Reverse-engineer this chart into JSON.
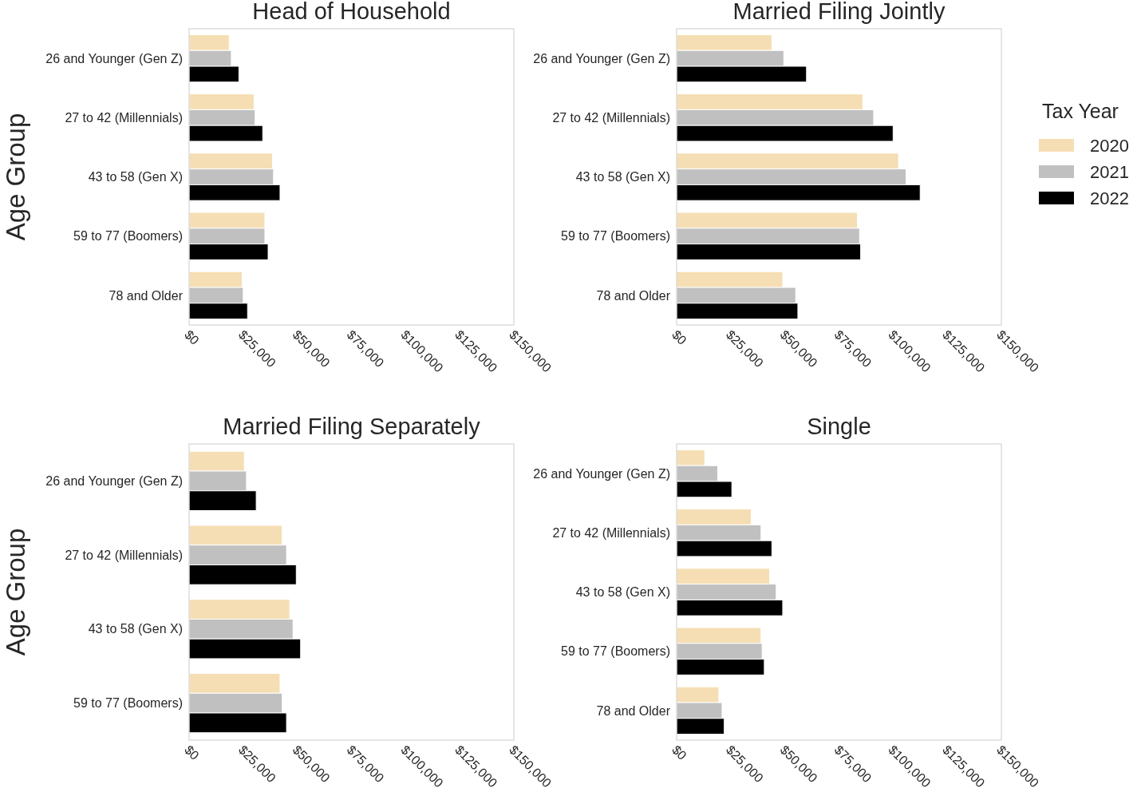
{
  "chart_data": [
    {
      "type": "bar",
      "orientation": "horizontal",
      "title": "Head of Household",
      "ylabel": "Age Group",
      "categories": [
        "26 and Younger (Gen Z)",
        "27 to 42 (Millennials)",
        "43 to 58 (Gen X)",
        "59 to 77 (Boomers)",
        "78 and Older"
      ],
      "xlim": [
        0,
        150000
      ],
      "xticks": [
        {
          "value": 0,
          "label": "$0"
        },
        {
          "value": 25000,
          "label": "$25,000"
        },
        {
          "value": 50000,
          "label": "$50,000"
        },
        {
          "value": 75000,
          "label": "$75,000"
        },
        {
          "value": 100000,
          "label": "$100,000"
        },
        {
          "value": 125000,
          "label": "$125,000"
        },
        {
          "value": 150000,
          "label": "$150,000"
        }
      ],
      "series": [
        {
          "color": "#f5deb3",
          "values": [
            18500,
            30000,
            38500,
            35000,
            24500
          ]
        },
        {
          "color": "#c0c0c0",
          "values": [
            19500,
            30500,
            39000,
            35000,
            25000
          ]
        },
        {
          "color": "#000000",
          "values": [
            23000,
            34000,
            42000,
            36500,
            27000
          ]
        }
      ]
    },
    {
      "type": "bar",
      "orientation": "horizontal",
      "title": "Married Filing Jointly",
      "legend": "right",
      "legend_title": "Tax Year",
      "categories": [
        "26 and Younger (Gen Z)",
        "27 to 42 (Millennials)",
        "43 to 58 (Gen X)",
        "59 to 77 (Boomers)",
        "78 and Older"
      ],
      "xlim": [
        0,
        150000
      ],
      "xticks": [
        {
          "value": 0,
          "label": "$0"
        },
        {
          "value": 25000,
          "label": "$25,000"
        },
        {
          "value": 50000,
          "label": "$50,000"
        },
        {
          "value": 75000,
          "label": "$75,000"
        },
        {
          "value": 100000,
          "label": "$100,000"
        },
        {
          "value": 125000,
          "label": "$125,000"
        },
        {
          "value": 150000,
          "label": "$150,000"
        }
      ],
      "series": [
        {
          "name": "2020",
          "color": "#f5deb3",
          "values": [
            44000,
            86000,
            102500,
            83500,
            49000
          ]
        },
        {
          "name": "2021",
          "color": "#c0c0c0",
          "values": [
            49500,
            91000,
            106000,
            84500,
            55000
          ]
        },
        {
          "name": "2022",
          "color": "#000000",
          "values": [
            60000,
            100000,
            112500,
            85000,
            56000
          ]
        }
      ]
    },
    {
      "type": "bar",
      "orientation": "horizontal",
      "title": "Married Filing Separately",
      "ylabel": "Age Group",
      "categories": [
        "26 and Younger (Gen Z)",
        "27 to 42 (Millennials)",
        "43 to 58 (Gen X)",
        "59 to 77 (Boomers)"
      ],
      "xlim": [
        0,
        150000
      ],
      "xticks": [
        {
          "value": 0,
          "label": "$0"
        },
        {
          "value": 25000,
          "label": "$25,000"
        },
        {
          "value": 50000,
          "label": "$50,000"
        },
        {
          "value": 75000,
          "label": "$75,000"
        },
        {
          "value": 100000,
          "label": "$100,000"
        },
        {
          "value": 125000,
          "label": "$125,000"
        },
        {
          "value": 150000,
          "label": "$150,000"
        }
      ],
      "series": [
        {
          "color": "#f5deb3",
          "values": [
            25500,
            43000,
            46500,
            42000
          ]
        },
        {
          "color": "#c0c0c0",
          "values": [
            26500,
            45000,
            48000,
            43000
          ]
        },
        {
          "color": "#000000",
          "values": [
            31000,
            49500,
            51500,
            45000
          ]
        }
      ]
    },
    {
      "type": "bar",
      "orientation": "horizontal",
      "title": "Single",
      "categories": [
        "26 and Younger (Gen Z)",
        "27 to 42 (Millennials)",
        "43 to 58 (Gen X)",
        "59 to 77 (Boomers)",
        "78 and Older"
      ],
      "xlim": [
        0,
        150000
      ],
      "xticks": [
        {
          "value": 0,
          "label": "$0"
        },
        {
          "value": 25000,
          "label": "$25,000"
        },
        {
          "value": 50000,
          "label": "$50,000"
        },
        {
          "value": 75000,
          "label": "$75,000"
        },
        {
          "value": 100000,
          "label": "$100,000"
        },
        {
          "value": 125000,
          "label": "$125,000"
        },
        {
          "value": 150000,
          "label": "$150,000"
        }
      ],
      "series": [
        {
          "color": "#f5deb3",
          "values": [
            13000,
            34500,
            43000,
            39000,
            19500
          ]
        },
        {
          "color": "#c0c0c0",
          "values": [
            19000,
            39000,
            46000,
            39500,
            21000
          ]
        },
        {
          "color": "#000000",
          "values": [
            25500,
            44000,
            49000,
            40500,
            22000
          ]
        }
      ]
    }
  ]
}
